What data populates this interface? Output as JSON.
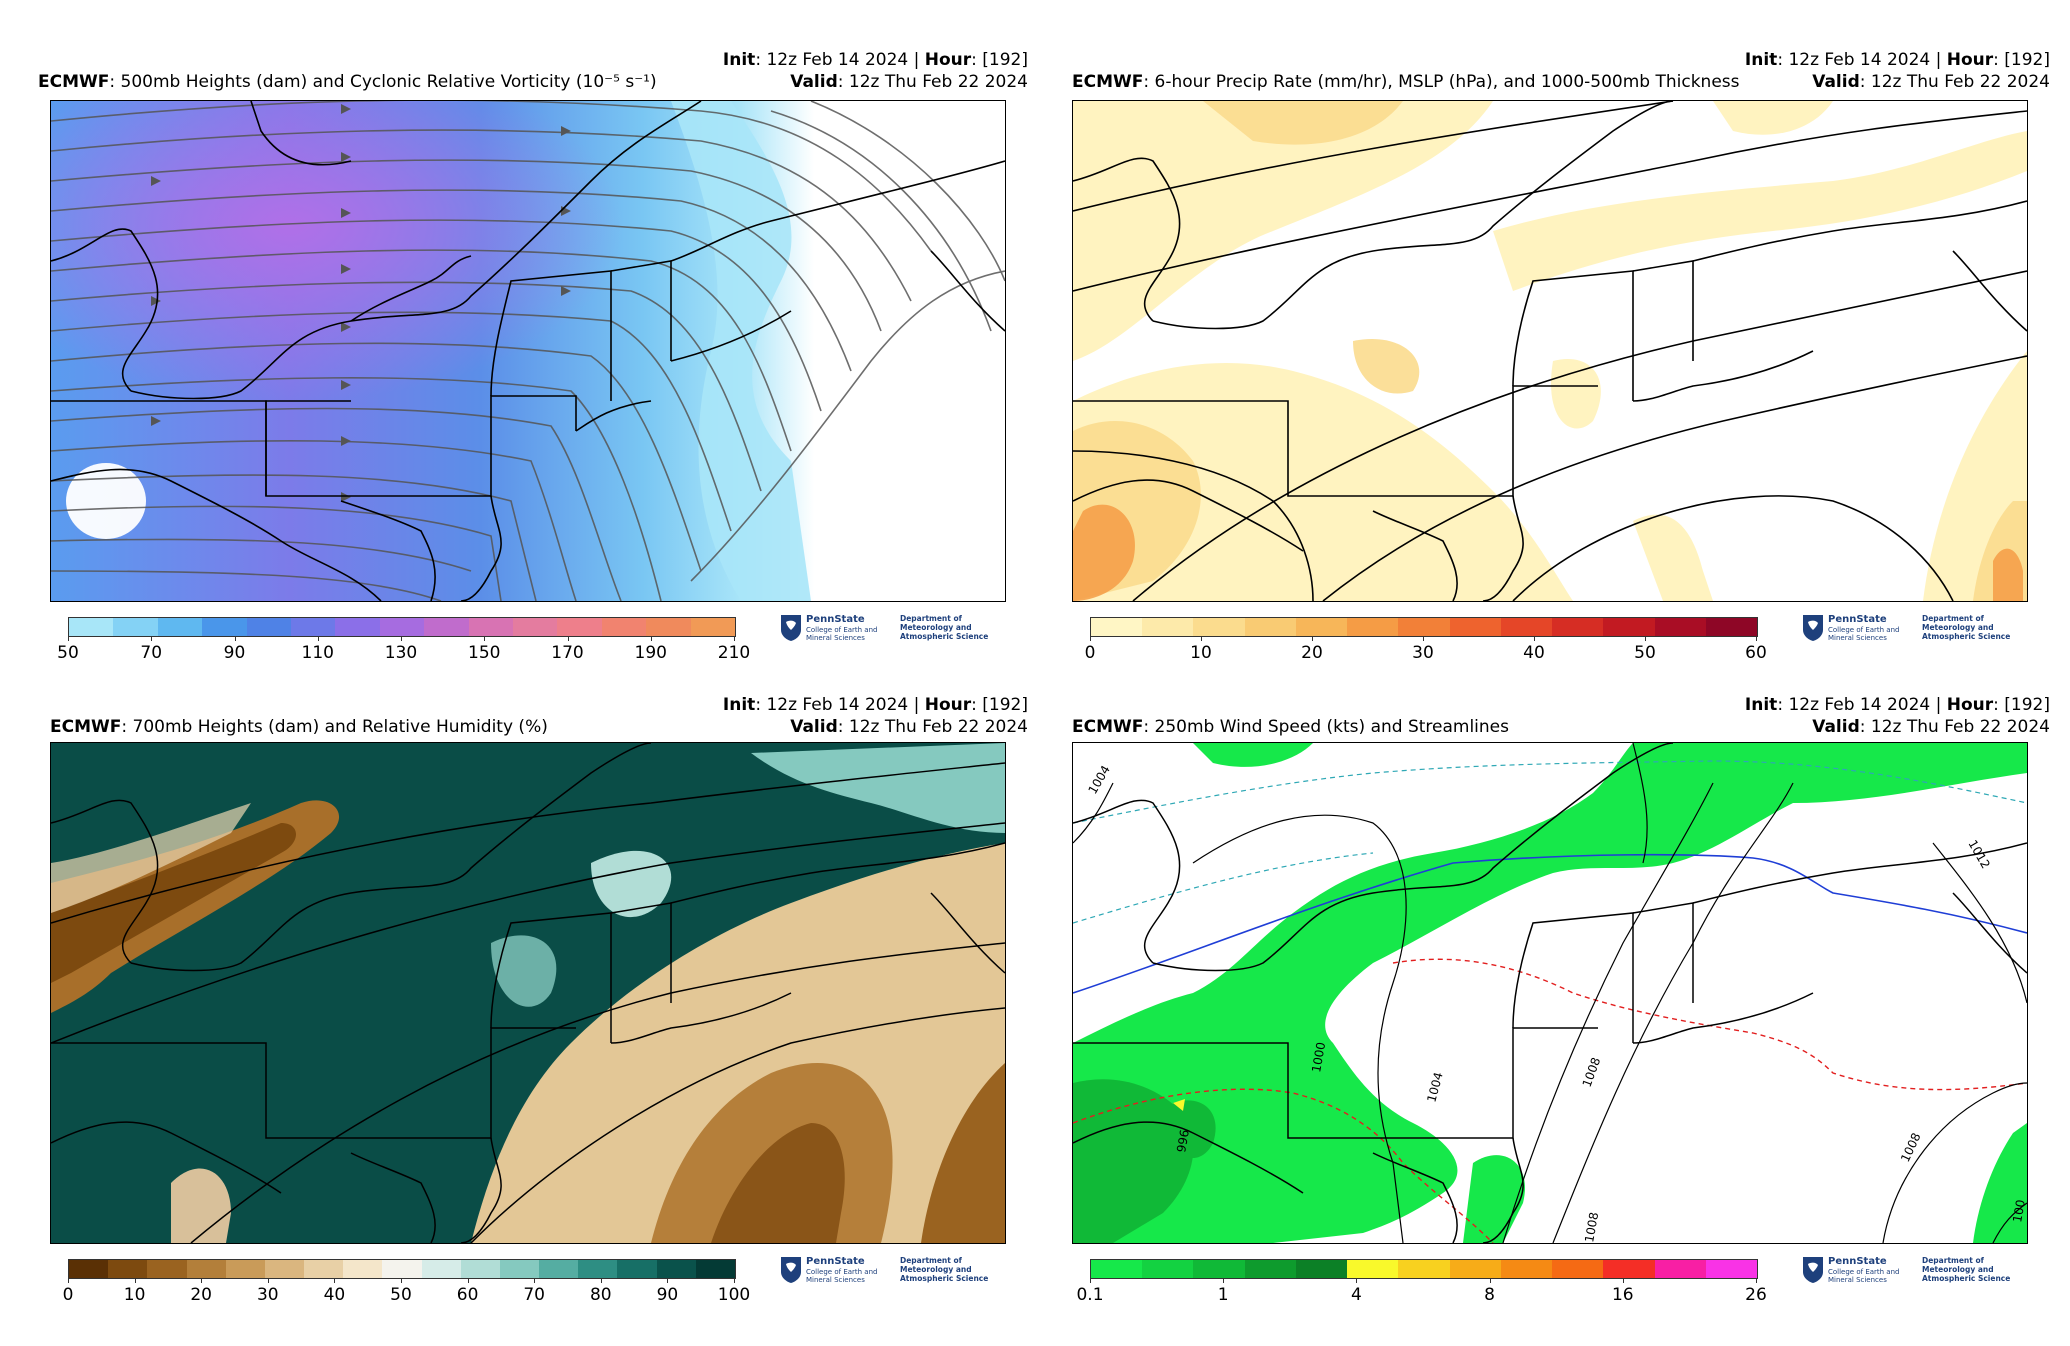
{
  "common": {
    "init_label": "Init",
    "init_value": ": 12z Feb 14 2024 | ",
    "hour_label": "Hour",
    "hour_value": ": [192]",
    "valid_label": "Valid",
    "valid_value": ": 12z Thu Feb 22 2024",
    "model": "ECMWF",
    "logo": {
      "name": "PennState",
      "college": "College of Earth and Mineral Sciences",
      "dept": "Department of Meteorology and Atmospheric Science"
    }
  },
  "panels": [
    {
      "title": ": 500mb Heights (dam) and Cyclonic Relative Vorticity (10⁻⁵ s⁻¹)",
      "colorbar": {
        "colors": [
          "#a8e6f8",
          "#84d2f5",
          "#5fb8f0",
          "#4a96ea",
          "#4f82e6",
          "#6d79e8",
          "#8b6fe8",
          "#a66ce0",
          "#c06ccc",
          "#d873b3",
          "#e47c9f",
          "#ee7f8b",
          "#f1836f",
          "#f08a5c",
          "#f19a56"
        ],
        "tick_labels": [
          "50",
          "70",
          "90",
          "110",
          "130",
          "150",
          "170",
          "190",
          "210"
        ]
      }
    },
    {
      "title": ": 6-hour Precip Rate (mm/hr), MSLP (hPa), and 1000-500mb Thickness",
      "colorbar": {
        "colors": [
          "#fff6c5",
          "#fdeaaa",
          "#fbdc8e",
          "#f9cb73",
          "#f7b659",
          "#f59c45",
          "#f28038",
          "#ee632e",
          "#e54628",
          "#d62d24",
          "#c21a22",
          "#a90d25",
          "#8e0626"
        ],
        "tick_labels": [
          "0",
          "10",
          "20",
          "30",
          "40",
          "50",
          "60"
        ]
      }
    },
    {
      "title": ": 700mb Heights (dam) and Relative Humidity (%)",
      "colorbar": {
        "colors": [
          "#5a3005",
          "#7d4a0f",
          "#9a6320",
          "#b37f3a",
          "#c99b59",
          "#dab67f",
          "#e8d0a6",
          "#f4e6ca",
          "#f4f3ed",
          "#d6ece8",
          "#b1ddd6",
          "#85c9bf",
          "#55ada2",
          "#2e8e83",
          "#176f66",
          "#0a524b",
          "#043a35"
        ],
        "tick_labels": [
          "0",
          "10",
          "20",
          "30",
          "40",
          "50",
          "60",
          "70",
          "80",
          "90",
          "100"
        ]
      }
    },
    {
      "title": ": 250mb Wind Speed (kts) and Streamlines",
      "colorbar": {
        "colors": [
          "#16e84a",
          "#13d241",
          "#10b937",
          "#0e9b2d",
          "#0c8026",
          "#f9f92b",
          "#f8d11f",
          "#f7ac18",
          "#f58a14",
          "#f56a14",
          "#f42e26",
          "#f81fa4",
          "#f933e6"
        ],
        "tick_labels": [
          "0.1",
          "1",
          "4",
          "8",
          "16",
          "26"
        ]
      },
      "contour_labels": [
        "1004",
        "1012",
        "1000",
        "1004",
        "1008",
        "1008",
        "996",
        "1008",
        "100"
      ]
    }
  ]
}
